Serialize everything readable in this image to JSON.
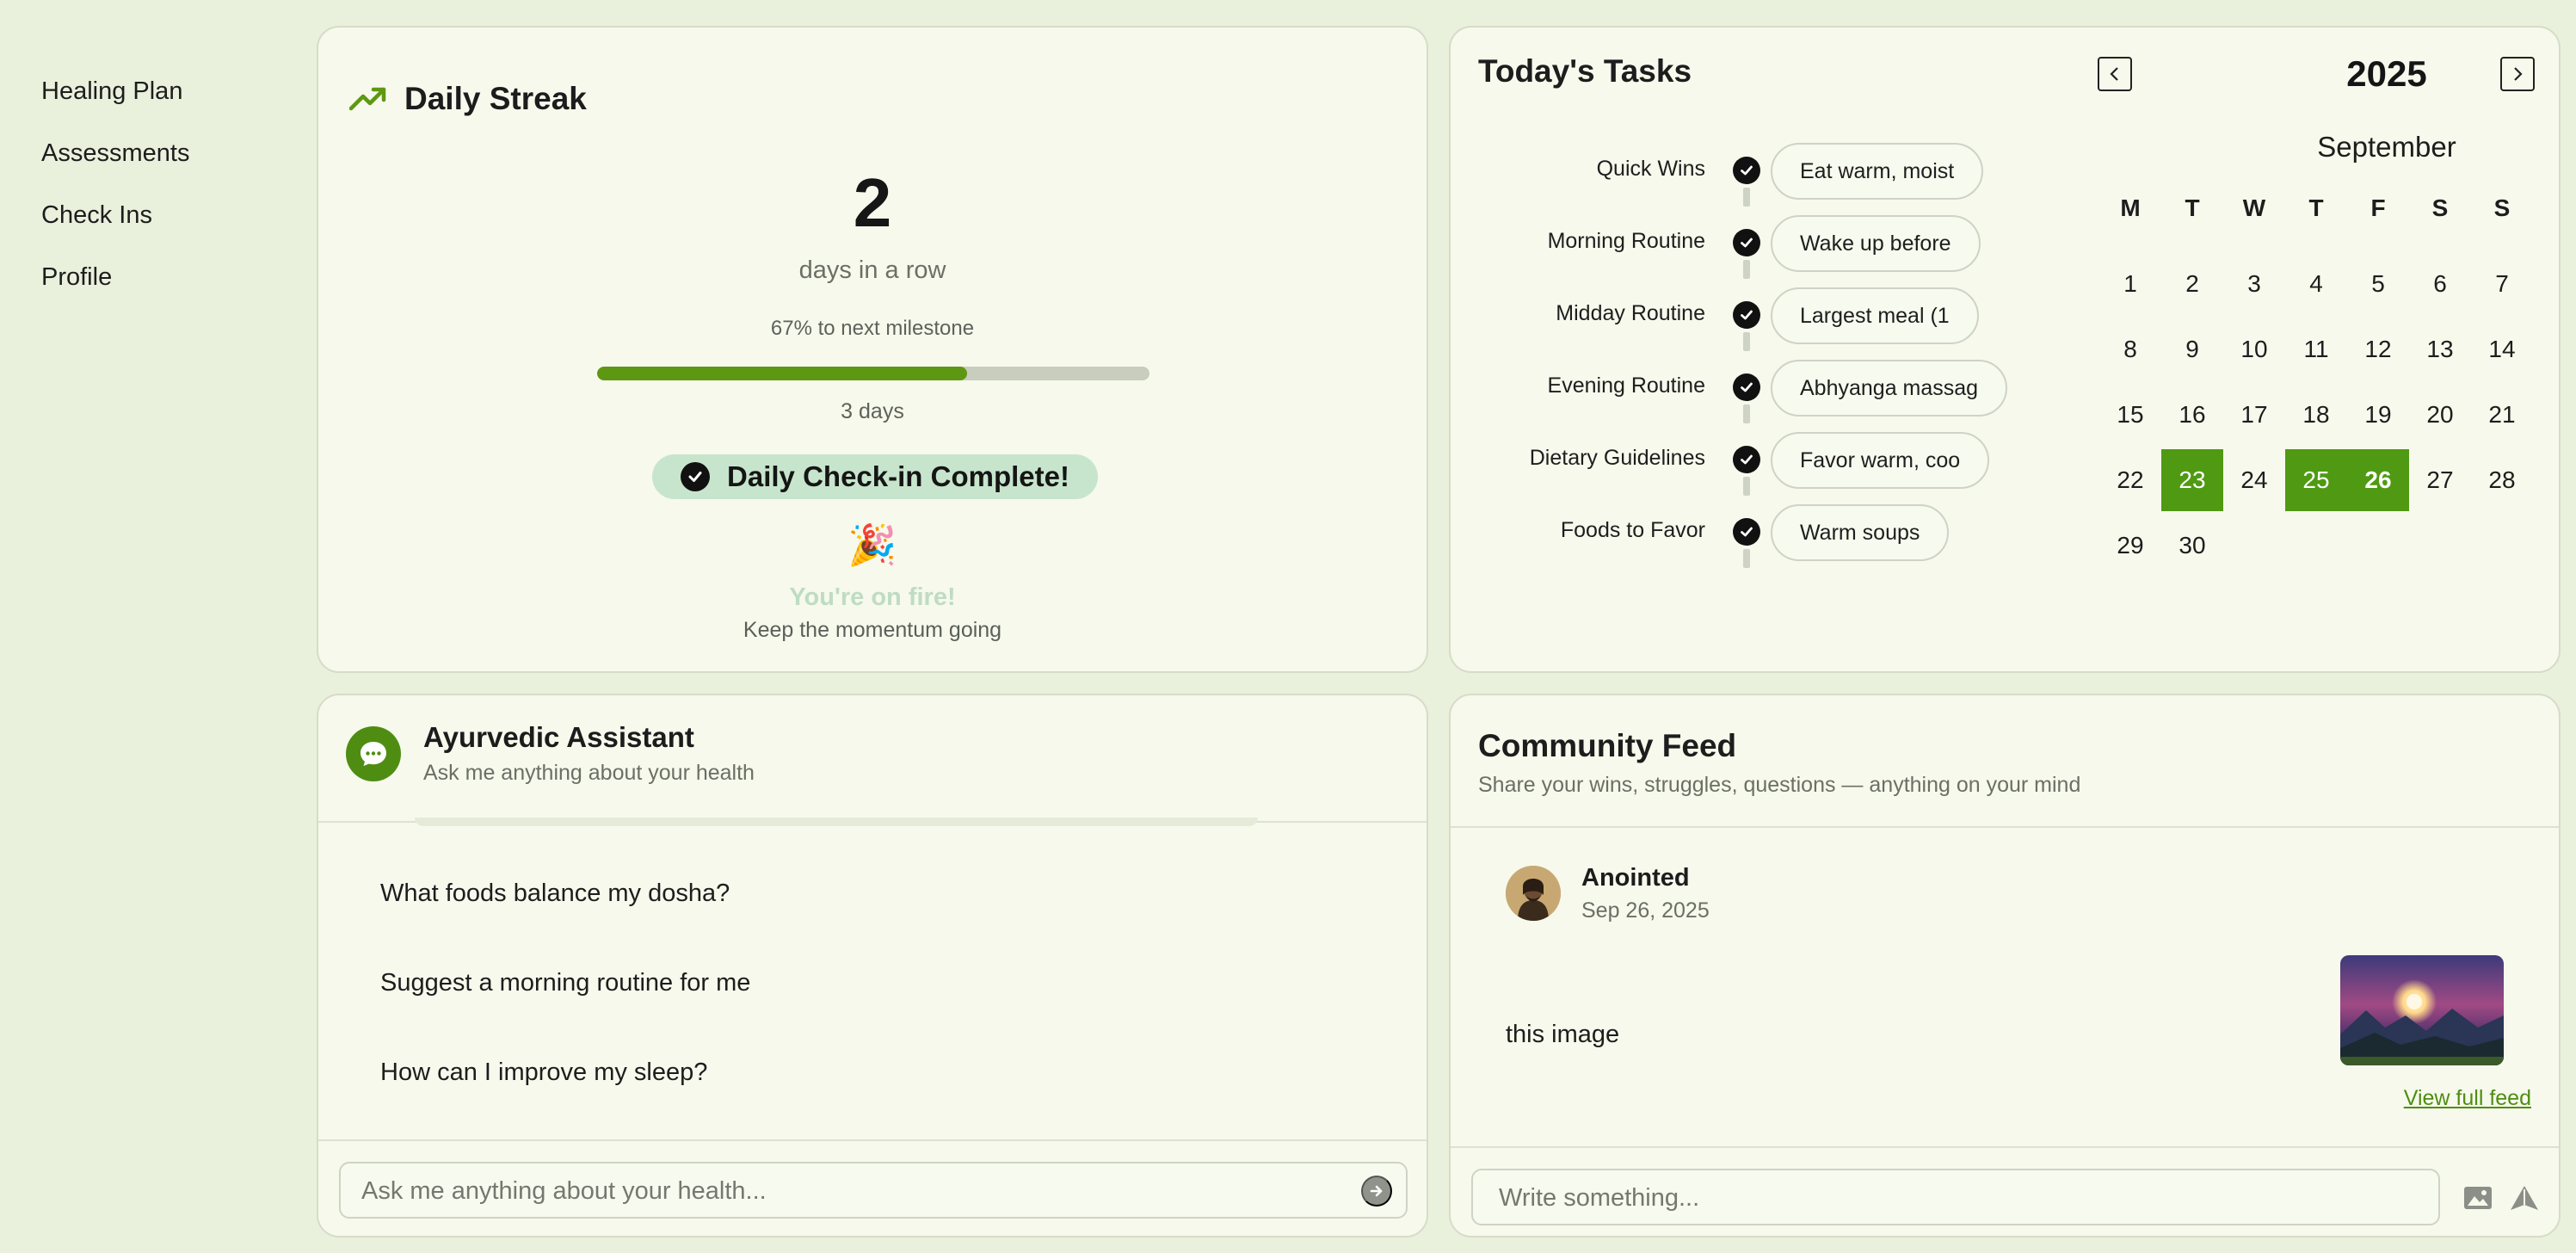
{
  "sidebar": {
    "items": [
      {
        "label": "Healing Plan"
      },
      {
        "label": "Assessments"
      },
      {
        "label": "Check Ins"
      },
      {
        "label": "Profile"
      }
    ]
  },
  "streak": {
    "title": "Daily Streak",
    "count": "2",
    "count_label": "days in a row",
    "milestone_text": "67% to next milestone",
    "milestone_progress": 0.67,
    "milestone_target": "3 days",
    "complete_text": "Daily Check-in Complete!",
    "party_emoji": "🎉",
    "fire_title": "You're on fire!",
    "fire_sub": "Keep the momentum going",
    "icon": "trending-up-icon",
    "accent_color": "#5e9712"
  },
  "tasks": {
    "title": "Today's Tasks",
    "items": [
      {
        "label": "Quick Wins",
        "task": "Eat warm, moist"
      },
      {
        "label": "Morning Routine",
        "task": "Wake up before"
      },
      {
        "label": "Midday Routine",
        "task": "Largest meal (1"
      },
      {
        "label": "Evening Routine",
        "task": "Abhyanga massag"
      },
      {
        "label": "Dietary Guidelines",
        "task": "Favor warm, coo"
      },
      {
        "label": "Foods to Favor",
        "task": "Warm soups"
      }
    ]
  },
  "calendar": {
    "year": "2025",
    "month": "September",
    "weekdays": [
      "M",
      "T",
      "W",
      "T",
      "F",
      "S",
      "S"
    ],
    "start_offset": 0,
    "days_in_month": 30,
    "highlighted_days": [
      23,
      25,
      26
    ],
    "bold_days": [
      26
    ],
    "highlight_color": "#4f9a12"
  },
  "assistant": {
    "title": "Ayurvedic Assistant",
    "subtitle": "Ask me anything about your health",
    "suggestions": [
      "What foods balance my dosha?",
      "Suggest a morning routine for me",
      "How can I improve my sleep?"
    ],
    "input_placeholder": "Ask me anything about your health..."
  },
  "feed": {
    "title": "Community Feed",
    "subtitle": "Share your wins, struggles, questions — anything on your mind",
    "post": {
      "author": "Anointed",
      "date": "Sep 26, 2025",
      "text": "this image"
    },
    "view_full": "View full feed",
    "input_placeholder": "Write something..."
  }
}
